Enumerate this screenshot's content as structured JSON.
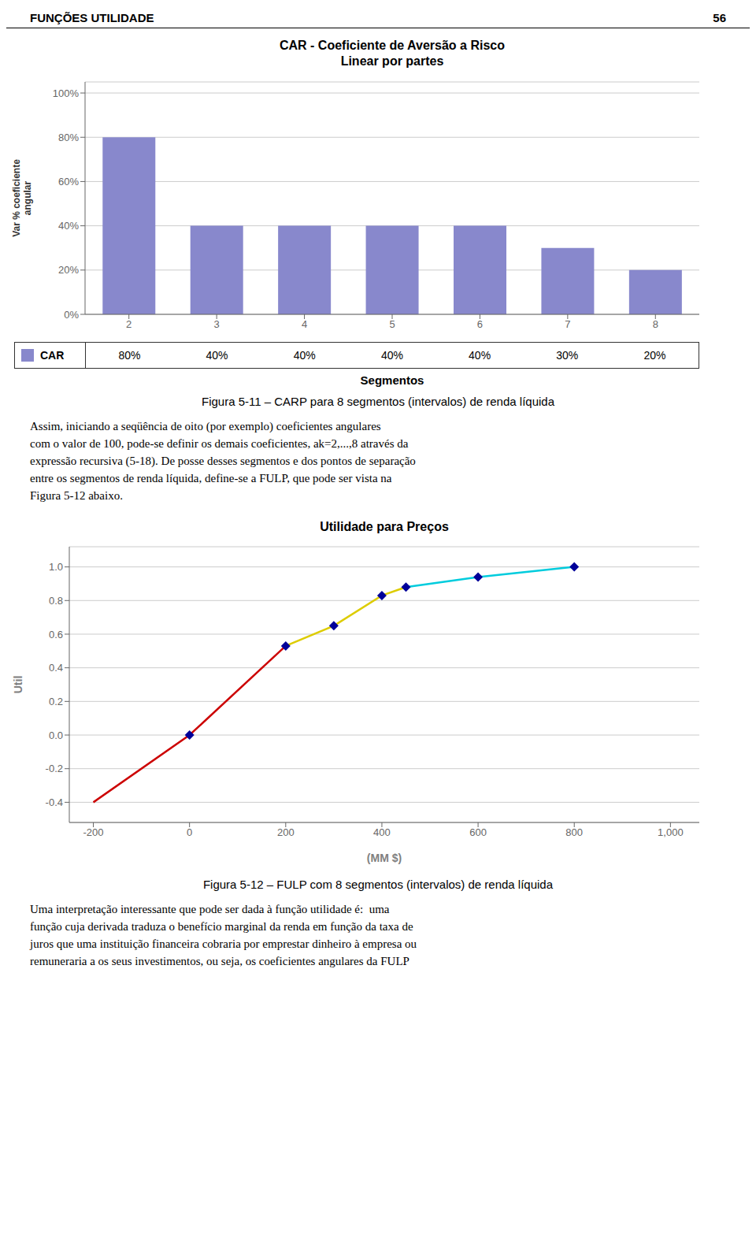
{
  "header": [
    "FUNÇÕES UTILIDADE",
    "56"
  ],
  "chart_data": [
    {
      "type": "bar",
      "title": "CAR - Coeficiente de Aversão a Risco",
      "subtitle": "Linear por partes",
      "x_label": "Segmentos",
      "y_label": "Var % coeficiente\nangular",
      "categories": [
        2,
        3,
        4,
        5,
        6,
        7,
        8
      ],
      "series": [
        {
          "name": "CAR",
          "color": "#8888CC",
          "values": [
            0.8,
            0.4,
            0.4,
            0.4,
            0.4,
            0.3,
            0.2
          ],
          "value_labels": [
            "80%",
            "40%",
            "40%",
            "40%",
            "40%",
            "30%",
            "20%"
          ]
        }
      ],
      "ylim": [
        0,
        1.05
      ],
      "yticks": [
        {
          "value": 0.0,
          "label": "0%"
        },
        {
          "value": 0.2,
          "label": "20%"
        },
        {
          "value": 0.4,
          "label": "40%"
        },
        {
          "value": 0.6,
          "label": "60%"
        },
        {
          "value": 0.8,
          "label": "80%"
        },
        {
          "value": 1.0,
          "label": "100%"
        }
      ],
      "grid": true,
      "legend": "bottom",
      "annotations": [
        "Figura 5-11 – CARP para 8 segmentos (intervalos) de renda líquida",
        "Assim, iniciando a seqüência de oito (por exemplo) coeficientes angulares",
        "com o valor de 100, pode-se definir os demais coeficientes, ak=2,...,8 através da",
        "expressão recursiva (5-18). De posse desses segmentos e dos pontos de separação",
        "entre os segmentos de renda líquida, define-se a FULP, que pode ser vista na",
        "Figura 5-12 abaixo."
      ]
    },
    {
      "type": "line",
      "title": "Utilidade para Preços",
      "x_label": "(MM $)",
      "y_label": "Util",
      "x": [
        -200,
        0,
        200,
        300,
        400,
        450,
        600,
        800
      ],
      "series": [
        {
          "type": "line",
          "color": "#CC0000",
          "values": [
            -0.4,
            0.0,
            0.53,
            null,
            null,
            null,
            null,
            null
          ]
        },
        {
          "type": "line",
          "color": "#DDCC00",
          "values": [
            null,
            null,
            0.53,
            0.65,
            0.83,
            0.88,
            null,
            null
          ]
        },
        {
          "type": "line",
          "color": "#00CCDD",
          "values": [
            null,
            null,
            null,
            null,
            null,
            0.88,
            0.94,
            1.0
          ]
        },
        {
          "type": "scatter",
          "marker": "diamond",
          "color": "#000099",
          "values": [
            null,
            0.0,
            0.53,
            0.65,
            0.83,
            0.88,
            0.94,
            1.0
          ]
        }
      ],
      "xlim": [
        -250,
        1060
      ],
      "ylim": [
        -0.52,
        1.12
      ],
      "xticks": [
        -200,
        0,
        200,
        400,
        600,
        800,
        {
          "value": 1000,
          "label": "1,000"
        }
      ],
      "yticks": [
        -0.4,
        -0.2,
        {
          "value": 0.0,
          "label": "0.0"
        },
        0.2,
        0.4,
        0.6,
        0.8,
        {
          "value": 1.0,
          "label": "1.0"
        }
      ],
      "grid": true,
      "annotations": [
        "Figura 5-12 – FULP com 8 segmentos (intervalos) de renda líquida",
        "Uma interpretação interessante que pode ser dada à função utilidade é:  uma",
        "função cuja derivada traduza o benefício marginal da renda em função da taxa de",
        "juros que uma instituição financeira cobraria por emprestar dinheiro à empresa ou",
        "remuneraria a os seus investimentos, ou seja, os coeficientes angulares da FULP"
      ]
    }
  ]
}
